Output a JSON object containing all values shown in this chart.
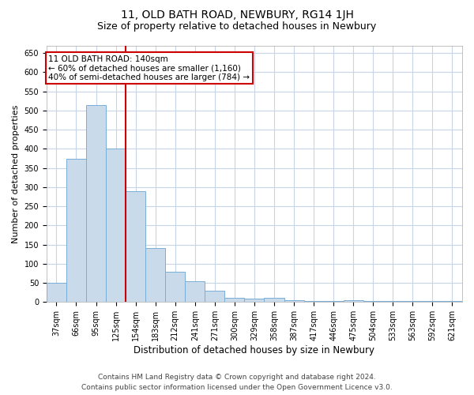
{
  "title": "11, OLD BATH ROAD, NEWBURY, RG14 1JH",
  "subtitle": "Size of property relative to detached houses in Newbury",
  "xlabel": "Distribution of detached houses by size in Newbury",
  "ylabel": "Number of detached properties",
  "categories": [
    "37sqm",
    "66sqm",
    "95sqm",
    "125sqm",
    "154sqm",
    "183sqm",
    "212sqm",
    "241sqm",
    "271sqm",
    "300sqm",
    "329sqm",
    "358sqm",
    "387sqm",
    "417sqm",
    "446sqm",
    "475sqm",
    "504sqm",
    "533sqm",
    "563sqm",
    "592sqm",
    "621sqm"
  ],
  "values": [
    50,
    375,
    515,
    400,
    290,
    140,
    80,
    55,
    30,
    10,
    8,
    12,
    5,
    3,
    3,
    5,
    3,
    2,
    2,
    2,
    2
  ],
  "bar_color": "#c9daea",
  "bar_edge_color": "#7aaed6",
  "vline_x_idx": 3,
  "vline_color": "#cc0000",
  "annotation_line1": "11 OLD BATH ROAD: 140sqm",
  "annotation_line2": "← 60% of detached houses are smaller (1,160)",
  "annotation_line3": "40% of semi-detached houses are larger (784) →",
  "annotation_box_color": "#ffffff",
  "annotation_box_edge_color": "#cc0000",
  "ylim": [
    0,
    670
  ],
  "yticks": [
    0,
    50,
    100,
    150,
    200,
    250,
    300,
    350,
    400,
    450,
    500,
    550,
    600,
    650
  ],
  "grid_color": "#c8d4e8",
  "background_color": "#ffffff",
  "footer_line1": "Contains HM Land Registry data © Crown copyright and database right 2024.",
  "footer_line2": "Contains public sector information licensed under the Open Government Licence v3.0.",
  "title_fontsize": 10,
  "subtitle_fontsize": 9,
  "xlabel_fontsize": 8.5,
  "ylabel_fontsize": 8,
  "tick_fontsize": 7,
  "footer_fontsize": 6.5,
  "annotation_fontsize": 7.5
}
